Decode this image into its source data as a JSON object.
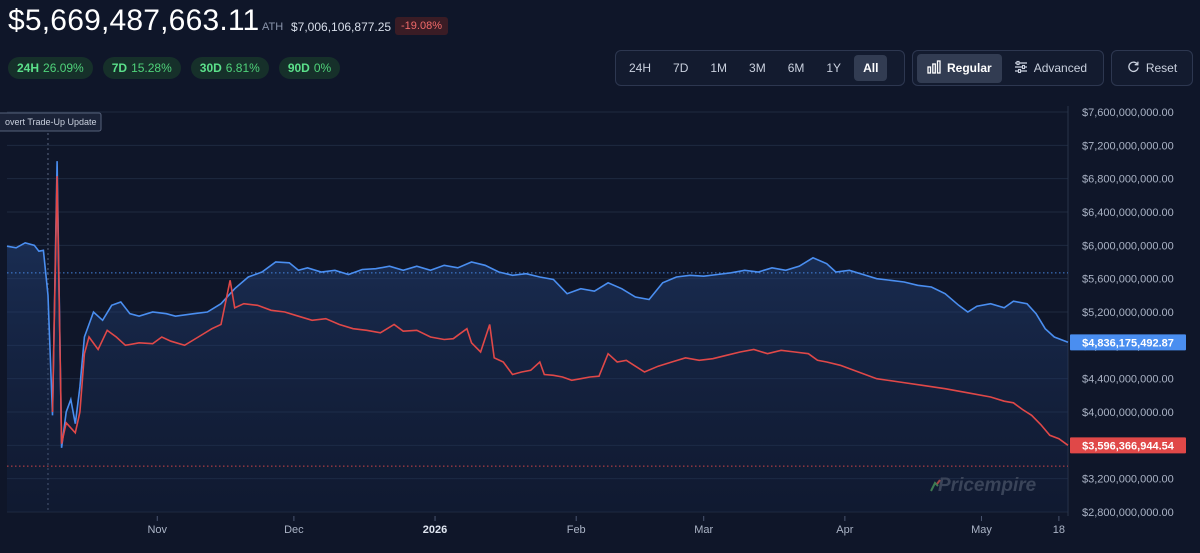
{
  "header": {
    "value": "$5,669,487,663.11",
    "ath_label": "ATH",
    "ath_value": "$7,006,106,877.25",
    "ath_change": "-19.08%"
  },
  "changes": [
    {
      "period": "24H",
      "value": "26.09%"
    },
    {
      "period": "7D",
      "value": "15.28%"
    },
    {
      "period": "30D",
      "value": "6.81%"
    },
    {
      "period": "90D",
      "value": "0%"
    }
  ],
  "ranges": [
    "24H",
    "7D",
    "1M",
    "3M",
    "6M",
    "1Y",
    "All"
  ],
  "active_range": "All",
  "modes": {
    "regular": "Regular",
    "advanced": "Advanced"
  },
  "reset_label": "Reset",
  "event_label": "overt Trade-Up Update",
  "watermark": "Pricempire",
  "colors": {
    "blue": "#4a8ef0",
    "red": "#e04848",
    "bg": "#0f1629"
  },
  "chart_data": {
    "type": "line",
    "ylim": [
      2800000000,
      7600000000
    ],
    "y_ticks": [
      7600000000,
      7200000000,
      6800000000,
      6400000000,
      6000000000,
      5600000000,
      5200000000,
      4800000000,
      4400000000,
      4000000000,
      3600000000,
      3200000000,
      2800000000
    ],
    "y_tick_labels": [
      "$7,600,000,000.00",
      "$7,200,000,000.00",
      "$6,800,000,000.00",
      "$6,400,000,000.00",
      "$6,000,000,000.00",
      "$5,600,000,000.00",
      "$5,200,000,000.00",
      "$4,800,000,000.00",
      "$4,400,000,000.00",
      "$4,000,000,000.00",
      "$3,600,000,000.00",
      "$3,200,000,000.00",
      "$2,800,000,000.00"
    ],
    "x_ticks": [
      {
        "label": "Nov",
        "day": 34,
        "bold": false
      },
      {
        "label": "Dec",
        "day": 64,
        "bold": false
      },
      {
        "label": "2026",
        "day": 95,
        "bold": true
      },
      {
        "label": "Feb",
        "day": 126,
        "bold": false
      },
      {
        "label": "Mar",
        "day": 154,
        "bold": false
      },
      {
        "label": "Apr",
        "day": 185,
        "bold": false
      },
      {
        "label": "May",
        "day": 215,
        "bold": false
      },
      {
        "label": "18",
        "day": 232,
        "bold": false
      }
    ],
    "xlim": [
      1,
      234
    ],
    "event_day": 10,
    "reference_lines": [
      5669487663,
      3350000000
    ],
    "series": [
      {
        "color": "#4a8ef0",
        "last_label": "$4,836,175,492.87",
        "points": [
          [
            1,
            5990000000
          ],
          [
            3,
            5970000000
          ],
          [
            5,
            6030000000
          ],
          [
            7,
            6000000000
          ],
          [
            8,
            5930000000
          ],
          [
            9,
            5940000000
          ],
          [
            10,
            5400000000
          ],
          [
            11,
            3960000000
          ],
          [
            12,
            7010000000
          ],
          [
            13,
            3570000000
          ],
          [
            14,
            4000000000
          ],
          [
            15,
            4150000000
          ],
          [
            16,
            3860000000
          ],
          [
            17,
            4300000000
          ],
          [
            18,
            4900000000
          ],
          [
            20,
            5200000000
          ],
          [
            22,
            5100000000
          ],
          [
            24,
            5280000000
          ],
          [
            26,
            5320000000
          ],
          [
            28,
            5180000000
          ],
          [
            30,
            5150000000
          ],
          [
            33,
            5200000000
          ],
          [
            36,
            5180000000
          ],
          [
            38,
            5150000000
          ],
          [
            42,
            5180000000
          ],
          [
            45,
            5200000000
          ],
          [
            48,
            5300000000
          ],
          [
            51,
            5480000000
          ],
          [
            54,
            5620000000
          ],
          [
            57,
            5680000000
          ],
          [
            60,
            5800000000
          ],
          [
            63,
            5790000000
          ],
          [
            65,
            5700000000
          ],
          [
            67,
            5730000000
          ],
          [
            70,
            5680000000
          ],
          [
            73,
            5700000000
          ],
          [
            76,
            5650000000
          ],
          [
            79,
            5710000000
          ],
          [
            82,
            5720000000
          ],
          [
            85,
            5750000000
          ],
          [
            88,
            5700000000
          ],
          [
            91,
            5750000000
          ],
          [
            94,
            5700000000
          ],
          [
            97,
            5760000000
          ],
          [
            100,
            5730000000
          ],
          [
            103,
            5800000000
          ],
          [
            106,
            5760000000
          ],
          [
            109,
            5680000000
          ],
          [
            112,
            5640000000
          ],
          [
            115,
            5660000000
          ],
          [
            118,
            5620000000
          ],
          [
            121,
            5590000000
          ],
          [
            124,
            5420000000
          ],
          [
            127,
            5480000000
          ],
          [
            130,
            5450000000
          ],
          [
            133,
            5550000000
          ],
          [
            136,
            5480000000
          ],
          [
            139,
            5380000000
          ],
          [
            142,
            5350000000
          ],
          [
            145,
            5550000000
          ],
          [
            148,
            5620000000
          ],
          [
            151,
            5640000000
          ],
          [
            154,
            5630000000
          ],
          [
            157,
            5650000000
          ],
          [
            160,
            5670000000
          ],
          [
            163,
            5700000000
          ],
          [
            166,
            5680000000
          ],
          [
            169,
            5730000000
          ],
          [
            172,
            5700000000
          ],
          [
            175,
            5750000000
          ],
          [
            178,
            5850000000
          ],
          [
            181,
            5780000000
          ],
          [
            183,
            5680000000
          ],
          [
            186,
            5700000000
          ],
          [
            189,
            5650000000
          ],
          [
            192,
            5600000000
          ],
          [
            195,
            5580000000
          ],
          [
            198,
            5560000000
          ],
          [
            201,
            5520000000
          ],
          [
            204,
            5500000000
          ],
          [
            207,
            5420000000
          ],
          [
            210,
            5280000000
          ],
          [
            212,
            5200000000
          ],
          [
            214,
            5270000000
          ],
          [
            217,
            5300000000
          ],
          [
            220,
            5250000000
          ],
          [
            222,
            5330000000
          ],
          [
            225,
            5300000000
          ],
          [
            227,
            5180000000
          ],
          [
            229,
            5000000000
          ],
          [
            231,
            4900000000
          ],
          [
            234,
            4836000000
          ]
        ]
      },
      {
        "color": "#e04848",
        "last_label": "$3,596,366,944.54",
        "points": [
          [
            11,
            4000000000
          ],
          [
            12,
            6830000000
          ],
          [
            13,
            3620000000
          ],
          [
            14,
            3870000000
          ],
          [
            16,
            3750000000
          ],
          [
            17,
            4000000000
          ],
          [
            18,
            4700000000
          ],
          [
            19,
            4900000000
          ],
          [
            21,
            4750000000
          ],
          [
            23,
            4980000000
          ],
          [
            25,
            4900000000
          ],
          [
            27,
            4800000000
          ],
          [
            30,
            4830000000
          ],
          [
            33,
            4820000000
          ],
          [
            35,
            4900000000
          ],
          [
            37,
            4850000000
          ],
          [
            40,
            4800000000
          ],
          [
            43,
            4900000000
          ],
          [
            46,
            5000000000
          ],
          [
            48,
            5050000000
          ],
          [
            50,
            5580000000
          ],
          [
            51,
            5250000000
          ],
          [
            53,
            5300000000
          ],
          [
            56,
            5280000000
          ],
          [
            59,
            5220000000
          ],
          [
            62,
            5200000000
          ],
          [
            65,
            5150000000
          ],
          [
            68,
            5100000000
          ],
          [
            71,
            5120000000
          ],
          [
            74,
            5050000000
          ],
          [
            77,
            5000000000
          ],
          [
            80,
            4980000000
          ],
          [
            83,
            4950000000
          ],
          [
            86,
            5050000000
          ],
          [
            88,
            4970000000
          ],
          [
            91,
            4980000000
          ],
          [
            94,
            4900000000
          ],
          [
            97,
            4870000000
          ],
          [
            99,
            4880000000
          ],
          [
            100,
            4920000000
          ],
          [
            102,
            5000000000
          ],
          [
            103,
            4830000000
          ],
          [
            105,
            4720000000
          ],
          [
            107,
            5050000000
          ],
          [
            108,
            4650000000
          ],
          [
            110,
            4600000000
          ],
          [
            112,
            4450000000
          ],
          [
            114,
            4480000000
          ],
          [
            116,
            4500000000
          ],
          [
            118,
            4600000000
          ],
          [
            119,
            4450000000
          ],
          [
            121,
            4440000000
          ],
          [
            123,
            4420000000
          ],
          [
            125,
            4380000000
          ],
          [
            127,
            4400000000
          ],
          [
            129,
            4420000000
          ],
          [
            131,
            4430000000
          ],
          [
            133,
            4700000000
          ],
          [
            135,
            4600000000
          ],
          [
            137,
            4620000000
          ],
          [
            139,
            4550000000
          ],
          [
            141,
            4480000000
          ],
          [
            144,
            4550000000
          ],
          [
            147,
            4600000000
          ],
          [
            150,
            4650000000
          ],
          [
            153,
            4620000000
          ],
          [
            156,
            4640000000
          ],
          [
            159,
            4680000000
          ],
          [
            162,
            4720000000
          ],
          [
            165,
            4750000000
          ],
          [
            168,
            4700000000
          ],
          [
            171,
            4740000000
          ],
          [
            174,
            4720000000
          ],
          [
            177,
            4700000000
          ],
          [
            179,
            4620000000
          ],
          [
            181,
            4600000000
          ],
          [
            184,
            4560000000
          ],
          [
            188,
            4480000000
          ],
          [
            192,
            4400000000
          ],
          [
            197,
            4360000000
          ],
          [
            202,
            4320000000
          ],
          [
            207,
            4280000000
          ],
          [
            212,
            4230000000
          ],
          [
            217,
            4180000000
          ],
          [
            220,
            4130000000
          ],
          [
            222,
            4110000000
          ],
          [
            224,
            4030000000
          ],
          [
            226,
            3960000000
          ],
          [
            228,
            3850000000
          ],
          [
            230,
            3720000000
          ],
          [
            232,
            3680000000
          ],
          [
            234,
            3600000000
          ]
        ]
      }
    ]
  }
}
